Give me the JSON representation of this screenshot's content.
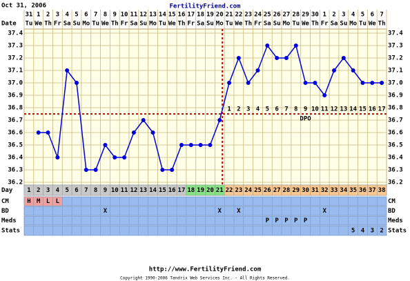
{
  "header": {
    "date": "Oct 31, 2006",
    "site": "FertilityFriend.com"
  },
  "footer": {
    "url": "http://www.FertilityFriend.com",
    "copyright": "Copyright 1990-2006 Tandrix Web Services Inc. - All Rights Reserved."
  },
  "chart_data": {
    "type": "line",
    "row_labels": {
      "date": "Date",
      "day": "Day",
      "cm": "CM",
      "bd": "BD",
      "meds": "Meds",
      "stats": "Stats"
    },
    "dates": [
      "31",
      "1",
      "2",
      "3",
      "4",
      "5",
      "6",
      "7",
      "8",
      "9",
      "10",
      "11",
      "12",
      "13",
      "14",
      "15",
      "16",
      "17",
      "18",
      "19",
      "20",
      "21",
      "22",
      "23",
      "24",
      "25",
      "26",
      "27",
      "28",
      "29",
      "30",
      "1",
      "2",
      "3",
      "4",
      "5",
      "6",
      "7"
    ],
    "weekdays": [
      "Tu",
      "We",
      "Th",
      "Fr",
      "Sa",
      "Su",
      "Mo",
      "Tu",
      "We",
      "Th",
      "Fr",
      "Sa",
      "Su",
      "Mo",
      "Tu",
      "We",
      "Th",
      "Fr",
      "Sa",
      "Su",
      "Mo",
      "Tu",
      "We",
      "Th",
      "Fr",
      "Sa",
      "Su",
      "Mo",
      "Tu",
      "We",
      "Th",
      "Fr",
      "Sa",
      "Su",
      "Mo",
      "Tu",
      "We",
      "Th"
    ],
    "categories": [
      "1",
      "2",
      "3",
      "4",
      "5",
      "6",
      "7",
      "8",
      "9",
      "10",
      "11",
      "12",
      "13",
      "14",
      "15",
      "16",
      "17",
      "18",
      "19",
      "20",
      "21",
      "22",
      "23",
      "24",
      "25",
      "26",
      "27",
      "28",
      "29",
      "30",
      "31",
      "32",
      "33",
      "34",
      "35",
      "36",
      "37",
      "38"
    ],
    "values": [
      null,
      36.6,
      36.6,
      36.4,
      37.1,
      37.0,
      36.3,
      36.3,
      36.5,
      36.4,
      36.4,
      36.6,
      36.7,
      36.6,
      36.3,
      36.3,
      36.5,
      36.5,
      36.5,
      36.5,
      36.7,
      37.0,
      37.2,
      37.0,
      37.1,
      37.3,
      37.2,
      37.2,
      37.3,
      37.0,
      37.0,
      36.9,
      37.1,
      37.2,
      37.1,
      37.0,
      37.0,
      37.0
    ],
    "color": "#0000dd",
    "ylim": [
      36.2,
      37.4
    ],
    "yticks": [
      36.2,
      36.3,
      36.4,
      36.5,
      36.6,
      36.7,
      36.8,
      36.9,
      {
        "value": 37.0,
        "label": "37.0"
      },
      37.1,
      37.2,
      37.3,
      37.4
    ],
    "grid": true,
    "coverline": 36.75,
    "ovulation_day": 21,
    "dpo": [
      null,
      null,
      null,
      null,
      null,
      null,
      null,
      null,
      null,
      null,
      null,
      null,
      null,
      null,
      null,
      null,
      null,
      null,
      null,
      null,
      null,
      "1",
      "2",
      "3",
      "4",
      "5",
      "6",
      "7",
      "8",
      "9",
      "10",
      "11",
      "12",
      "13",
      "14",
      "15",
      "16",
      "17"
    ],
    "dpo_label": "DPO",
    "cm": [
      "H",
      "M",
      "L",
      "L",
      null,
      null,
      null,
      null,
      null,
      null,
      null,
      null,
      null,
      null,
      null,
      null,
      null,
      null,
      null,
      null,
      null,
      null,
      null,
      null,
      null,
      null,
      null,
      null,
      null,
      null,
      null,
      null,
      null,
      null,
      null,
      null,
      null,
      null
    ],
    "bd": [
      null,
      null,
      null,
      null,
      null,
      null,
      null,
      null,
      "X",
      null,
      null,
      null,
      null,
      null,
      null,
      null,
      null,
      null,
      null,
      null,
      "X",
      null,
      "X",
      null,
      null,
      null,
      null,
      null,
      null,
      null,
      null,
      "X",
      null,
      null,
      null,
      null,
      null,
      null
    ],
    "meds": [
      null,
      null,
      null,
      null,
      null,
      null,
      null,
      null,
      null,
      null,
      null,
      null,
      null,
      null,
      null,
      null,
      null,
      null,
      null,
      null,
      null,
      null,
      null,
      null,
      null,
      "P",
      "P",
      "P",
      "P",
      "P",
      null,
      null,
      null,
      null,
      null,
      null,
      null,
      null
    ],
    "stats": [
      null,
      null,
      null,
      null,
      null,
      null,
      null,
      null,
      null,
      null,
      null,
      null,
      null,
      null,
      null,
      null,
      null,
      null,
      null,
      null,
      null,
      null,
      null,
      null,
      null,
      null,
      null,
      null,
      null,
      null,
      null,
      null,
      null,
      null,
      "5",
      "4",
      "3",
      "2"
    ]
  }
}
